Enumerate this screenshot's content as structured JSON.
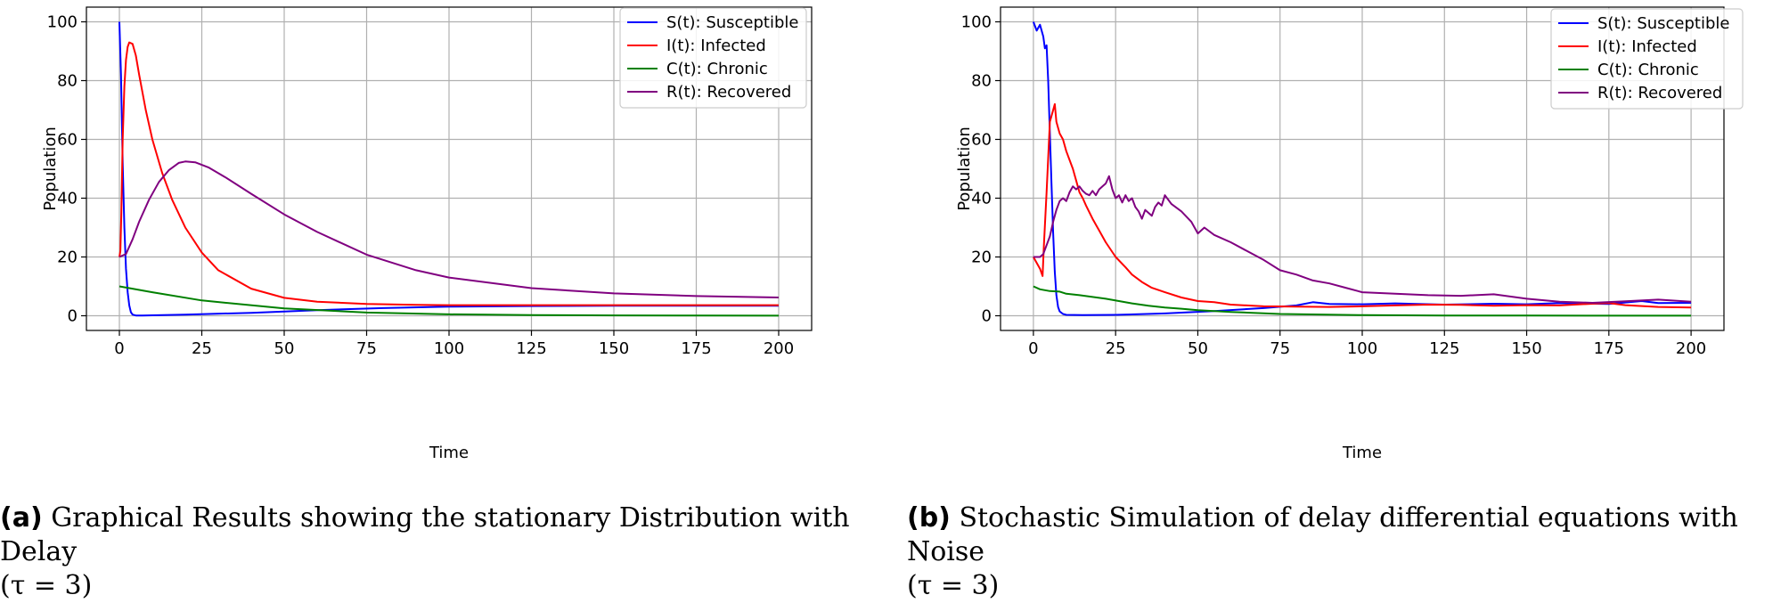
{
  "chart_data": [
    {
      "type": "line",
      "panel": "a",
      "xlabel": "Time",
      "ylabel": "Population",
      "xlim": [
        -10,
        210
      ],
      "ylim": [
        -5,
        105
      ],
      "xticks": [
        0,
        25,
        50,
        75,
        100,
        125,
        150,
        175,
        200
      ],
      "yticks": [
        0,
        20,
        40,
        60,
        80,
        100
      ],
      "grid": true,
      "legend_position": "top-right",
      "series": [
        {
          "name": "S(t): Susceptible",
          "color": "#0000ff",
          "x": [
            0,
            0.5,
            1,
            1.5,
            2,
            2.5,
            3,
            3.5,
            4,
            5,
            7,
            10,
            20,
            40,
            60,
            80,
            100,
            125,
            150,
            175,
            200
          ],
          "y": [
            100,
            82,
            52,
            30,
            16,
            8,
            3.5,
            1.2,
            0.4,
            0.1,
            0.1,
            0.15,
            0.4,
            1.0,
            1.9,
            2.6,
            3.1,
            3.3,
            3.4,
            3.4,
            3.4
          ]
        },
        {
          "name": "I(t): Infected",
          "color": "#ff0000",
          "x": [
            0,
            0.3,
            0.6,
            1,
            1.5,
            2,
            2.5,
            3,
            4,
            5,
            6,
            8,
            10,
            13,
            16,
            20,
            25,
            30,
            40,
            50,
            60,
            75,
            90,
            100,
            125,
            150,
            175,
            200
          ],
          "y": [
            20,
            22,
            35,
            60,
            78,
            87,
            91.5,
            93,
            92.5,
            88.5,
            82,
            70,
            60,
            48.5,
            39.5,
            30,
            21.5,
            15.5,
            9.2,
            6.1,
            4.8,
            4.0,
            3.7,
            3.6,
            3.6,
            3.6,
            3.6,
            3.6
          ]
        },
        {
          "name": "C(t): Chronic",
          "color": "#008000",
          "x": [
            0,
            10,
            25,
            50,
            75,
            100,
            125,
            150,
            175,
            200
          ],
          "y": [
            10,
            8,
            5.2,
            2.5,
            1.1,
            0.5,
            0.25,
            0.12,
            0.06,
            0.03
          ]
        },
        {
          "name": "R(t): Recovered",
          "color": "#800080",
          "x": [
            0,
            2,
            4,
            6,
            9,
            12,
            15,
            18,
            20,
            23,
            27,
            32,
            40,
            50,
            60,
            75,
            90,
            100,
            125,
            150,
            175,
            200
          ],
          "y": [
            20,
            21,
            26,
            32,
            39.5,
            45.5,
            49.5,
            52,
            52.5,
            52.2,
            50.5,
            47.2,
            41.5,
            34.5,
            28.5,
            20.8,
            15.5,
            13.0,
            9.4,
            7.6,
            6.7,
            6.2
          ]
        }
      ]
    },
    {
      "type": "line",
      "panel": "b",
      "xlabel": "Time",
      "ylabel": "Population",
      "xlim": [
        -10,
        210
      ],
      "ylim": [
        -5,
        105
      ],
      "xticks": [
        0,
        25,
        50,
        75,
        100,
        125,
        150,
        175,
        200
      ],
      "yticks": [
        0,
        20,
        40,
        60,
        80,
        100
      ],
      "grid": true,
      "legend_position": "top-right",
      "series": [
        {
          "name": "S(t): Susceptible",
          "color": "#0000ff",
          "x": [
            0,
            1,
            2,
            3,
            3.5,
            4,
            4.5,
            5,
            5.5,
            6,
            6.5,
            7,
            7.5,
            8,
            9,
            10,
            15,
            25,
            40,
            55,
            70,
            80,
            85,
            90,
            100,
            110,
            125,
            140,
            150,
            160,
            175,
            185,
            190,
            200
          ],
          "y": [
            100,
            97,
            99,
            95,
            91,
            92,
            80,
            62,
            45,
            28,
            15,
            7,
            3,
            1.5,
            0.6,
            0.3,
            0.2,
            0.3,
            0.8,
            1.6,
            2.6,
            3.5,
            4.6,
            4.0,
            3.9,
            4.2,
            3.8,
            4.1,
            3.9,
            4.3,
            4.0,
            5.0,
            4.3,
            4.4
          ]
        },
        {
          "name": "I(t): Infected",
          "color": "#ff0000",
          "x": [
            0,
            1,
            2,
            2.8,
            3.2,
            4,
            5,
            6,
            6.5,
            7,
            8,
            9,
            10,
            11,
            12,
            13,
            14,
            15,
            16,
            18,
            20,
            22,
            25,
            28,
            30,
            33,
            36,
            40,
            45,
            50,
            55,
            60,
            70,
            80,
            90,
            100,
            110,
            120,
            130,
            140,
            150,
            160,
            170,
            175,
            180,
            190,
            200
          ],
          "y": [
            20,
            18,
            16,
            13.5,
            24,
            42,
            66,
            70,
            72,
            66,
            62,
            60,
            56,
            53,
            50,
            46,
            42,
            40,
            37.5,
            33,
            29,
            25,
            20,
            16.5,
            14,
            11.5,
            9.5,
            8,
            6.2,
            5,
            4.6,
            3.8,
            3.2,
            3.1,
            3.0,
            3.2,
            3.5,
            3.8,
            3.7,
            3.4,
            3.6,
            3.5,
            4.1,
            4.3,
            3.6,
            3.0,
            2.8
          ]
        },
        {
          "name": "C(t): Chronic",
          "color": "#008000",
          "x": [
            0,
            2,
            5,
            8,
            10,
            14,
            18,
            22,
            26,
            30,
            35,
            40,
            45,
            50,
            60,
            75,
            100,
            125,
            150,
            175,
            200
          ],
          "y": [
            10,
            9,
            8.4,
            8.2,
            7.5,
            7.0,
            6.4,
            5.8,
            5.0,
            4.2,
            3.4,
            2.8,
            2.4,
            1.9,
            1.3,
            0.6,
            0.2,
            0.1,
            0.05,
            0.03,
            0.02
          ]
        },
        {
          "name": "R(t): Recovered",
          "color": "#800080",
          "x": [
            0,
            2,
            3,
            4,
            5,
            6,
            7,
            8,
            9,
            10,
            11,
            12,
            13,
            14,
            15,
            16,
            17,
            18,
            19,
            20,
            21,
            22,
            23,
            24,
            25,
            26,
            27,
            28,
            29,
            30,
            31,
            32,
            33,
            34,
            35,
            36,
            37,
            38,
            39,
            40,
            42,
            45,
            48,
            50,
            52,
            55,
            60,
            65,
            70,
            75,
            80,
            85,
            90,
            95,
            100,
            110,
            120,
            130,
            140,
            150,
            160,
            170,
            180,
            190,
            200
          ],
          "y": [
            20,
            20,
            21,
            24,
            27,
            32,
            36,
            39,
            40,
            39,
            42,
            44,
            43,
            44,
            42.5,
            41.5,
            41,
            42.5,
            41,
            43,
            44,
            45,
            47.5,
            43,
            40,
            41,
            38.5,
            41,
            39,
            40,
            37,
            35.5,
            33,
            36,
            35,
            34,
            37,
            38.5,
            37.5,
            41,
            38,
            35.5,
            32,
            28,
            30,
            27.5,
            25,
            22,
            19,
            15.5,
            14,
            12,
            11,
            9.5,
            8,
            7.5,
            7,
            6.8,
            7.3,
            5.8,
            4.8,
            4.4,
            4.9,
            5.5,
            4.8
          ]
        }
      ]
    }
  ],
  "captions": {
    "a": {
      "label": "(a)",
      "text": "Graphical Results showing the stationary Distribution with Delay",
      "line2": "(τ = 3)"
    },
    "b": {
      "label": "(b)",
      "text": "Stochastic Simulation of delay differential equations with Noise",
      "line2": "(τ = 3)"
    }
  }
}
